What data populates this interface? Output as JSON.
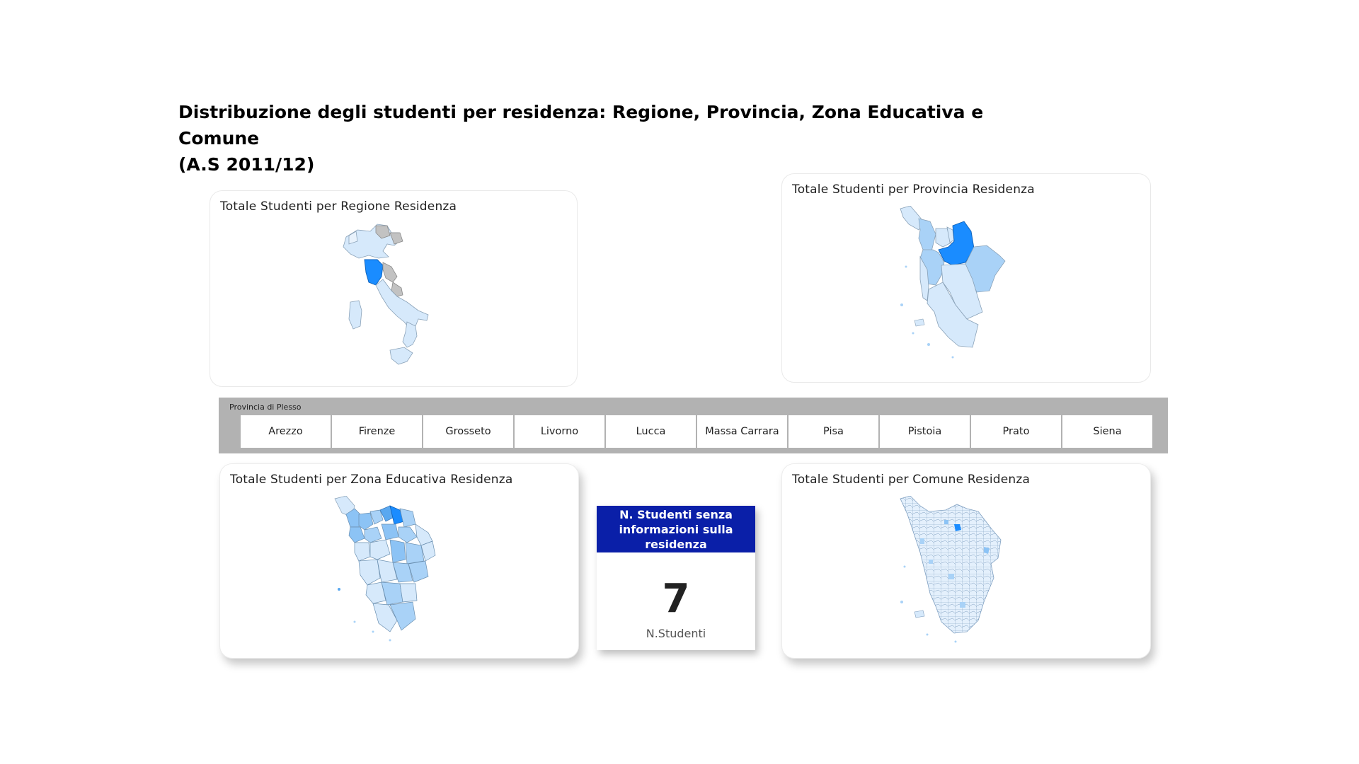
{
  "page": {
    "title_line1": "Distribuzione degli studenti per residenza: Regione, Provincia, Zona Educativa e Comune",
    "title_line2": "(A.S 2011/12)"
  },
  "cards": {
    "region": {
      "title": "Totale Studenti per Regione Residenza",
      "map_icon": "italy-map-icon"
    },
    "province": {
      "title": "Totale Studenti per Provincia Residenza",
      "map_icon": "tuscany-provinces-map-icon"
    },
    "zona": {
      "title": "Totale Studenti per Zona Educativa Residenza",
      "map_icon": "tuscany-zones-map-icon"
    },
    "comune": {
      "title": "Totale Studenti per Comune Residenza",
      "map_icon": "tuscany-municipalities-map-icon"
    }
  },
  "slicer": {
    "title": "Provincia di Plesso",
    "items": [
      "Arezzo",
      "Firenze",
      "Grosseto",
      "Livorno",
      "Lucca",
      "Massa Carrara",
      "Pisa",
      "Pistoia",
      "Prato",
      "Siena"
    ]
  },
  "kpi": {
    "header": "N. Studenti senza informazioni sulla residenza",
    "value": "7",
    "label": "N.Studenti"
  },
  "colors": {
    "kpi_header": "#0a1fa8",
    "map_highlight": "#1a8cff",
    "map_light": "#d6e9fb",
    "map_medium": "#a9d2f7",
    "map_gray": "#c2c2c2",
    "slicer_bg": "#b2b2b2"
  }
}
